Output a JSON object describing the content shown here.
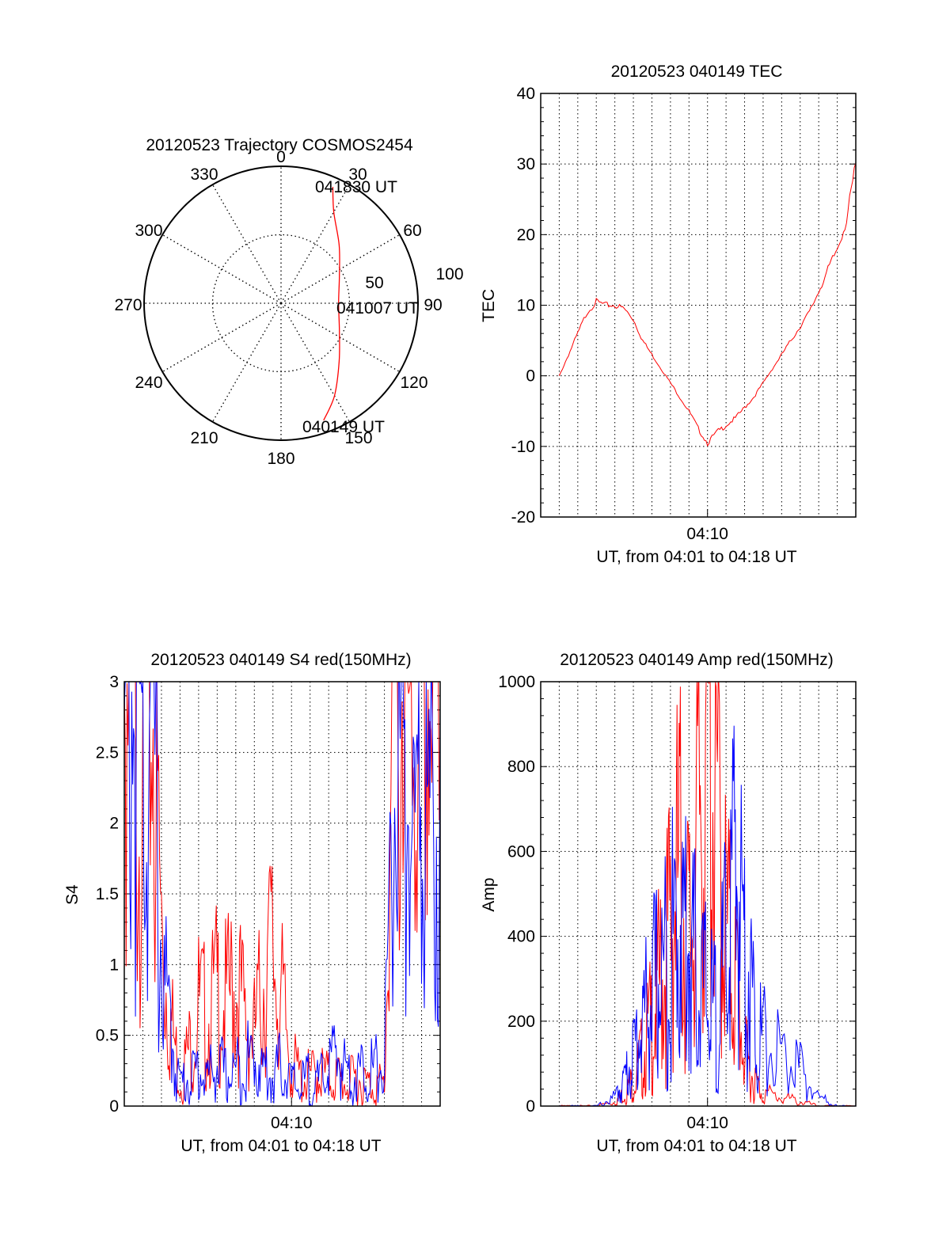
{
  "chart_data": [
    {
      "type": "polar",
      "title": "20120523 Trajectory COSMOS2454",
      "angle_ticks": [
        "0",
        "30",
        "60",
        "90",
        "120",
        "150",
        "180",
        "210",
        "240",
        "270",
        "300",
        "330"
      ],
      "radial_ticks": [
        "50",
        "100"
      ],
      "rlim": [
        0,
        100
      ],
      "annotations": [
        "041830 UT",
        "041007 UT",
        "040149 UT"
      ],
      "trajectory": {
        "color": "#ff0000",
        "points": [
          {
            "az": 160,
            "r": 91
          },
          {
            "az": 150,
            "r": 78
          },
          {
            "az": 135,
            "r": 60
          },
          {
            "az": 115,
            "r": 47
          },
          {
            "az": 90,
            "r": 42
          },
          {
            "az": 65,
            "r": 47
          },
          {
            "az": 45,
            "r": 60
          },
          {
            "az": 30,
            "r": 77
          },
          {
            "az": 24,
            "r": 93
          }
        ]
      },
      "grid": true
    },
    {
      "type": "line",
      "title": "20120523 040149 TEC",
      "xlabel": "UT, from 04:01 to 04:18 UT",
      "ylabel": "TEC",
      "xtick_labels": [
        "04:10"
      ],
      "ytick_labels": [
        "40",
        "30",
        "20",
        "10",
        "0",
        "-10",
        "-20"
      ],
      "ylim": [
        -20,
        40
      ],
      "grid": true,
      "series": [
        {
          "color": "#ff0000",
          "x": [
            "04:02:00",
            "04:02:30",
            "04:03:00",
            "04:03:30",
            "04:04:00",
            "04:04:30",
            "04:05:00",
            "04:05:30",
            "04:06:00",
            "04:06:30",
            "04:07:00",
            "04:07:30",
            "04:08:00",
            "04:08:30",
            "04:09:00",
            "04:09:30",
            "04:10:00",
            "04:10:30",
            "04:11:00",
            "04:11:30",
            "04:12:00",
            "04:12:30",
            "04:13:00",
            "04:13:30",
            "04:14:00",
            "04:14:30",
            "04:15:00",
            "04:15:30",
            "04:16:00",
            "04:16:30",
            "04:17:00",
            "04:17:30",
            "04:18:00"
          ],
          "values": [
            0,
            3,
            6,
            9,
            10.5,
            10,
            10,
            9.5,
            8,
            5,
            3,
            1,
            -1,
            -3,
            -5,
            -7.5,
            -9.5,
            -8,
            -7,
            -6,
            -4.5,
            -3,
            -1,
            1,
            3,
            5,
            7,
            9,
            12,
            15,
            18,
            22,
            30
          ]
        }
      ]
    },
    {
      "type": "line",
      "title": "20120523 040149 S4 red(150MHz)",
      "xlabel": "UT, from 04:01 to 04:18 UT",
      "ylabel": "S4",
      "xtick_labels": [
        "04:10"
      ],
      "ytick_labels": [
        "3",
        "2.5",
        "2",
        "1.5",
        "1",
        "0.5",
        "0"
      ],
      "ylim": [
        0,
        3
      ],
      "grid": true,
      "series": [
        {
          "color": "#ff0000",
          "x": [
            "04:01:00",
            "04:01:30",
            "04:02:00",
            "04:02:30",
            "04:03:00",
            "04:03:30",
            "04:04:00",
            "04:04:30",
            "04:05:00",
            "04:05:30",
            "04:06:00",
            "04:06:30",
            "04:07:00",
            "04:07:30",
            "04:08:00",
            "04:08:30",
            "04:09:00",
            "04:09:30",
            "04:10:00",
            "04:10:30",
            "04:11:00",
            "04:11:30",
            "04:12:00",
            "04:12:30",
            "04:13:00",
            "04:13:30",
            "04:14:00",
            "04:14:30",
            "04:15:00",
            "04:15:30",
            "04:16:00",
            "04:16:30",
            "04:17:00",
            "04:17:30",
            "04:18:00"
          ],
          "values": [
            3,
            3,
            3,
            3,
            1.2,
            0.6,
            0.2,
            0.4,
            0.7,
            0.6,
            0.8,
            0.7,
            0.9,
            0.6,
            0.5,
            0.9,
            1.1,
            0.7,
            0.3,
            0.2,
            0.2,
            0.25,
            0.2,
            0.2,
            0.15,
            0.2,
            0.15,
            0.15,
            0.15,
            3,
            3,
            2.5,
            3,
            3,
            2.8
          ]
        },
        {
          "color": "#0000ff",
          "x": [
            "04:01:00",
            "04:01:30",
            "04:02:00",
            "04:02:30",
            "04:03:00",
            "04:03:30",
            "04:04:00",
            "04:04:30",
            "04:05:00",
            "04:05:30",
            "04:06:00",
            "04:06:30",
            "04:07:00",
            "04:07:30",
            "04:08:00",
            "04:08:30",
            "04:09:00",
            "04:09:30",
            "04:10:00",
            "04:10:30",
            "04:11:00",
            "04:11:30",
            "04:12:00",
            "04:12:30",
            "04:13:00",
            "04:13:30",
            "04:14:00",
            "04:14:30",
            "04:15:00",
            "04:15:30",
            "04:16:00",
            "04:16:30",
            "04:17:00",
            "04:17:30",
            "04:18:00"
          ],
          "values": [
            2.8,
            3,
            2.5,
            2.9,
            1,
            0.5,
            0.15,
            0.2,
            0.25,
            0.2,
            0.3,
            0.2,
            0.25,
            0.3,
            0.35,
            0.25,
            0.2,
            0.3,
            0.15,
            0.15,
            0.2,
            0.15,
            0.3,
            0.35,
            0.25,
            0.2,
            0.3,
            0.25,
            0.3,
            2.2,
            2.5,
            1.8,
            2.2,
            2,
            1.9
          ]
        }
      ]
    },
    {
      "type": "line",
      "title": "20120523 040149 Amp red(150MHz)",
      "xlabel": "UT, from 04:01 to 04:18 UT",
      "ylabel": "Amp",
      "xtick_labels": [
        "04:10"
      ],
      "ytick_labels": [
        "1000",
        "800",
        "600",
        "400",
        "200",
        "0"
      ],
      "ylim": [
        0,
        1000
      ],
      "grid": true,
      "series": [
        {
          "color": "#ff0000",
          "x": [
            "04:02:00",
            "04:03:00",
            "04:04:00",
            "04:05:00",
            "04:05:30",
            "04:06:00",
            "04:06:30",
            "04:07:00",
            "04:07:30",
            "04:08:00",
            "04:08:30",
            "04:09:00",
            "04:09:30",
            "04:10:00",
            "04:10:30",
            "04:11:00",
            "04:11:30",
            "04:12:00",
            "04:12:30",
            "04:13:00",
            "04:14:00",
            "04:15:00",
            "04:16:00",
            "04:17:00",
            "04:18:00"
          ],
          "values": [
            0,
            0,
            0,
            10,
            30,
            60,
            120,
            200,
            300,
            420,
            560,
            380,
            650,
            900,
            700,
            420,
            300,
            120,
            60,
            30,
            20,
            10,
            0,
            0,
            0
          ]
        },
        {
          "color": "#0000ff",
          "x": [
            "04:02:00",
            "04:03:00",
            "04:04:00",
            "04:05:00",
            "04:05:30",
            "04:06:00",
            "04:06:30",
            "04:07:00",
            "04:07:30",
            "04:08:00",
            "04:08:30",
            "04:09:00",
            "04:09:30",
            "04:10:00",
            "04:10:30",
            "04:11:00",
            "04:11:30",
            "04:12:00",
            "04:12:30",
            "04:13:00",
            "04:14:00",
            "04:15:00",
            "04:16:00",
            "04:17:00",
            "04:18:00"
          ],
          "values": [
            0,
            0,
            0,
            20,
            60,
            120,
            200,
            260,
            300,
            360,
            440,
            380,
            300,
            250,
            200,
            350,
            560,
            400,
            220,
            150,
            120,
            80,
            20,
            0,
            0
          ]
        }
      ]
    }
  ]
}
